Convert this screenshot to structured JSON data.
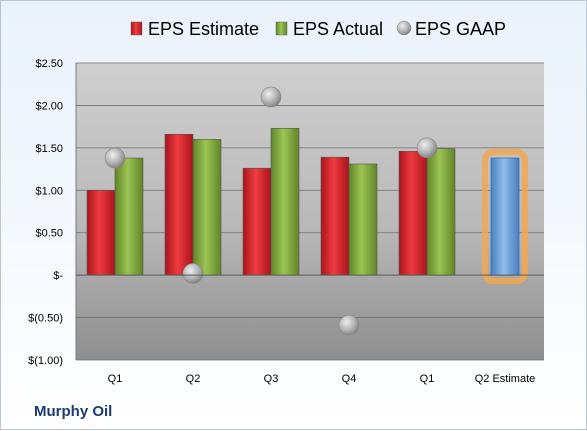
{
  "company": "Murphy Oil",
  "colors": {
    "estimate": "#d8242b",
    "actual": "#7ea83a",
    "gaap": "#b4b4b4",
    "next_estimate": "#6a9fd6",
    "highlight": "#f5a650"
  },
  "chart_data": {
    "type": "bar",
    "categories": [
      "Q1",
      "Q2",
      "Q3",
      "Q4",
      "Q1",
      "Q2 Estimate"
    ],
    "series": [
      {
        "name": "EPS Estimate",
        "values": [
          1.0,
          1.66,
          1.26,
          1.39,
          1.46,
          null
        ]
      },
      {
        "name": "EPS Actual",
        "values": [
          1.38,
          1.6,
          1.73,
          1.31,
          1.49,
          1.38
        ]
      },
      {
        "name": "EPS GAAP",
        "values": [
          1.38,
          0.02,
          2.1,
          null,
          1.5,
          null
        ]
      }
    ],
    "ylim": [
      -1.0,
      2.5
    ],
    "yticks": [
      2.5,
      2.0,
      1.5,
      1.0,
      0.5,
      0,
      -0.5,
      -1.0
    ],
    "ytick_labels": [
      "$2.50",
      "$2.00",
      "$1.50",
      "$1.00",
      "$0.50",
      "$-",
      "$(0.50)",
      "$(1.00)"
    ],
    "extra_points": [
      {
        "category_index": 3,
        "series": "EPS GAAP",
        "value": -0.59
      }
    ],
    "legend_position": "top",
    "grid": true
  }
}
